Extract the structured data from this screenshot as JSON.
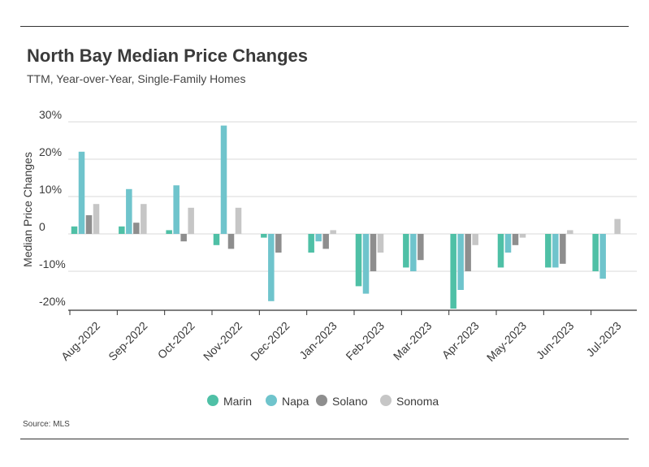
{
  "header": {
    "title": "North Bay Median Price Changes",
    "subtitle": "TTM, Year-over-Year, Single-Family Homes"
  },
  "footer": {
    "source": "Source: MLS"
  },
  "chart_data": {
    "type": "bar",
    "title": "North Bay Median Price Changes",
    "subtitle": "TTM, Year-over-Year, Single-Family Homes",
    "xlabel": "",
    "ylabel": "Median Price Changes",
    "ylim": [
      -20,
      30
    ],
    "yticks": [
      30,
      20,
      10,
      0,
      -10,
      -20
    ],
    "ytick_labels": [
      "30%",
      "20%",
      "10%",
      "0",
      "-10%",
      "-20%"
    ],
    "grid": true,
    "legend_position": "bottom",
    "categories": [
      "Aug-2022",
      "Sep-2022",
      "Oct-2022",
      "Nov-2022",
      "Dec-2022",
      "Jan-2023",
      "Feb-2023",
      "Mar-2023",
      "Apr-2023",
      "May-2023",
      "Jun-2023",
      "Jul-2023"
    ],
    "series": [
      {
        "name": "Marin",
        "color": "#4fc0a6",
        "values": [
          2,
          2,
          1,
          -3,
          -1,
          -5,
          -14,
          -9,
          -20,
          -9,
          -9,
          -10
        ]
      },
      {
        "name": "Napa",
        "color": "#6fc4cc",
        "values": [
          22,
          12,
          13,
          29,
          -18,
          -2,
          -16,
          -10,
          -15,
          -5,
          -9,
          -12
        ]
      },
      {
        "name": "Solano",
        "color": "#8e8e8e",
        "values": [
          5,
          3,
          -2,
          -4,
          -5,
          -4,
          -10,
          -7,
          -10,
          -3,
          -8,
          0
        ]
      },
      {
        "name": "Sonoma",
        "color": "#c6c6c6",
        "values": [
          8,
          8,
          7,
          7,
          0,
          1,
          -5,
          0,
          -3,
          -1,
          1,
          4
        ]
      }
    ]
  }
}
